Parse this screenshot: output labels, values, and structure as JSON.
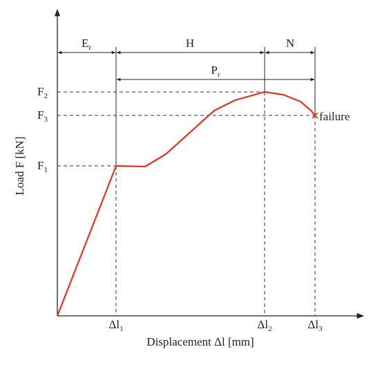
{
  "diagram": {
    "y_axis_label": "Load F [kN]",
    "x_axis_label": "Displacement Δl [mm]",
    "failure_label": "failure",
    "zones": {
      "er": {
        "main": "E",
        "sub": "r"
      },
      "h": {
        "main": "H"
      },
      "n": {
        "main": "N"
      },
      "pr": {
        "main": "P",
        "sub": "r"
      }
    },
    "y_labels": [
      {
        "main": "F",
        "sub": "2"
      },
      {
        "main": "F",
        "sub": "3"
      },
      {
        "main": "F",
        "sub": "1"
      }
    ],
    "x_labels": [
      {
        "main": "Δl",
        "sub": "1"
      },
      {
        "main": "Δl",
        "sub": "2"
      },
      {
        "main": "Δl",
        "sub": "3"
      }
    ]
  }
}
